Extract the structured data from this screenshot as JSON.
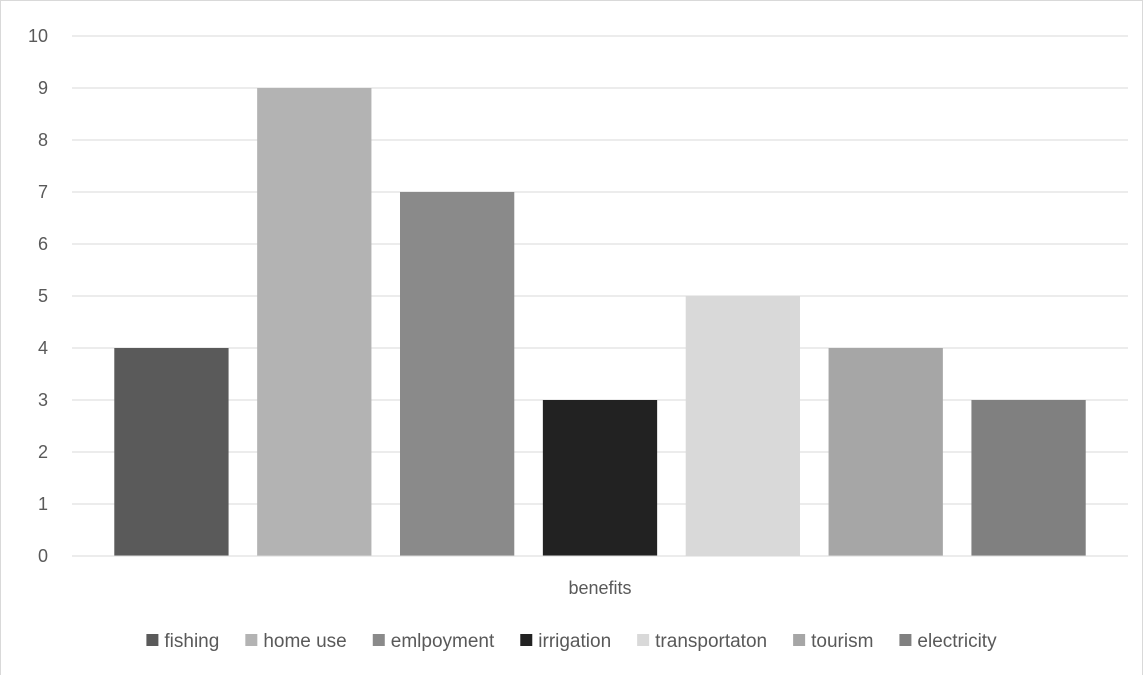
{
  "chart_data": {
    "type": "bar",
    "title": "",
    "xlabel": "benefits",
    "ylabel": "",
    "ylim": [
      0,
      10
    ],
    "yticks": [
      0,
      1,
      2,
      3,
      4,
      5,
      6,
      7,
      8,
      9,
      10
    ],
    "grid": true,
    "legend_position": "bottom",
    "categories": [
      "benefits"
    ],
    "series": [
      {
        "name": "fishing",
        "values": [
          4
        ],
        "color": "#5a5a5a"
      },
      {
        "name": "home use",
        "values": [
          9
        ],
        "color": "#b3b3b3"
      },
      {
        "name": "emlpoyment",
        "values": [
          7
        ],
        "color": "#8a8a8a"
      },
      {
        "name": "irrigation",
        "values": [
          3
        ],
        "color": "#222222"
      },
      {
        "name": "transportaton",
        "values": [
          5
        ],
        "color": "#d9d9d9"
      },
      {
        "name": "tourism",
        "values": [
          4
        ],
        "color": "#a6a6a6"
      },
      {
        "name": "electricity",
        "values": [
          3
        ],
        "color": "#808080"
      }
    ]
  }
}
